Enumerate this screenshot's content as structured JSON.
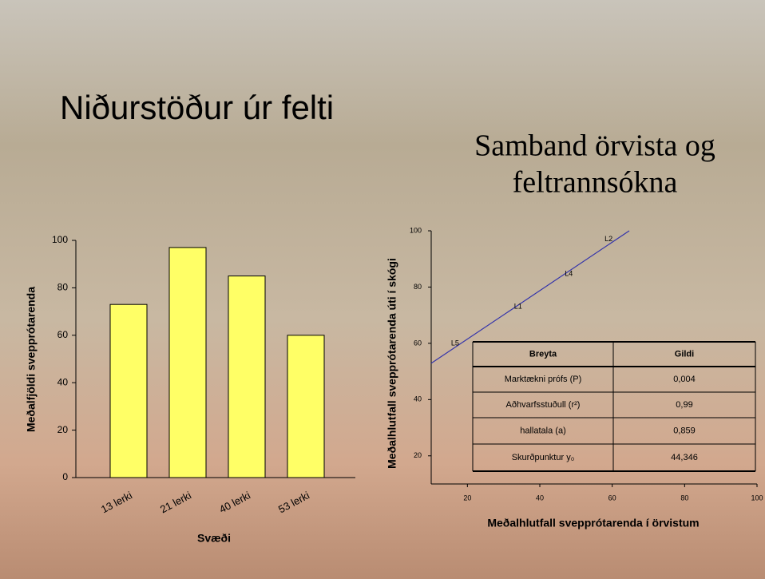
{
  "slide": {
    "title": "Niðurstöður úr felti",
    "subtitle_lines": [
      "Samband örvista og",
      "feltrannsókna"
    ]
  },
  "chart_data": [
    {
      "type": "bar",
      "categories": [
        "13 lerki",
        "21 lerki",
        "40 lerki",
        "53 lerki"
      ],
      "values": [
        73,
        97,
        85,
        60
      ],
      "color": "#ffff66",
      "ylim": [
        0,
        100
      ],
      "yticks": [
        0,
        20,
        40,
        60,
        80,
        100
      ],
      "y_label": "Meðalfjöldi svepprótarenda",
      "x_label": "Svæði"
    },
    {
      "type": "line",
      "x": [
        10,
        64.7
      ],
      "series": [
        {
          "color": "#3333aa",
          "values": [
            52.9,
            100
          ]
        }
      ],
      "point_labels": {
        "labels": [
          "L5",
          "L1",
          "L4",
          "L2"
        ],
        "x": [
          16.6,
          34,
          48,
          59
        ],
        "y": [
          60,
          73,
          84.6,
          97
        ]
      },
      "xlim": [
        10,
        100
      ],
      "xticks": [
        20,
        40,
        60,
        80,
        100
      ],
      "ylim": [
        10,
        100
      ],
      "yticks": [
        20,
        40,
        60,
        80,
        100
      ],
      "x_label": "Meðalhlutfall svepprótarenda í örvistum",
      "y_label": "Meðalhlutfall svepprótarenda úti í skógi"
    }
  ],
  "table": {
    "header": [
      "Breyta",
      "Gildi"
    ],
    "rows": [
      [
        "Marktækni prófs (P)",
        "0,004"
      ],
      [
        "Aðhvarfsstuðull (r²)",
        "0,99"
      ],
      [
        "hallatala (a)",
        "0,859"
      ],
      [
        "Skurðpunktur y₀",
        "44,346"
      ]
    ]
  }
}
